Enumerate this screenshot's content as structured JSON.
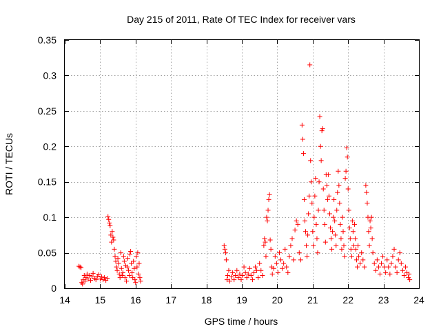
{
  "chart_data": {
    "type": "scatter",
    "title": "Day 215 of 2011, Rate Of TEC Index for receiver vars",
    "xlabel": "GPS time / hours",
    "ylabel": "ROTI / TECUs",
    "xlim": [
      14,
      24
    ],
    "ylim": [
      0,
      0.35
    ],
    "x_ticks": [
      "14",
      "15",
      "16",
      "17",
      "18",
      "19",
      "20",
      "21",
      "22",
      "23",
      "24"
    ],
    "y_ticks": [
      "0",
      "0.05",
      "0.1",
      "0.15",
      "0.2",
      "0.25",
      "0.3",
      "0.35"
    ],
    "grid": true,
    "marker": "plus",
    "series": [
      {
        "color": "#ff0000",
        "points": [
          [
            14.4,
            0.031
          ],
          [
            14.43,
            0.03
          ],
          [
            14.46,
            0.029
          ],
          [
            14.48,
            0.008
          ],
          [
            14.5,
            0.006
          ],
          [
            14.52,
            0.012
          ],
          [
            14.55,
            0.018
          ],
          [
            14.57,
            0.01
          ],
          [
            14.6,
            0.015
          ],
          [
            14.63,
            0.02
          ],
          [
            14.66,
            0.013
          ],
          [
            14.7,
            0.018
          ],
          [
            14.73,
            0.011
          ],
          [
            14.77,
            0.016
          ],
          [
            14.8,
            0.021
          ],
          [
            14.84,
            0.014
          ],
          [
            14.88,
            0.012
          ],
          [
            14.92,
            0.017
          ],
          [
            14.96,
            0.019
          ],
          [
            15.0,
            0.013
          ],
          [
            15.04,
            0.016
          ],
          [
            15.08,
            0.012
          ],
          [
            15.12,
            0.015
          ],
          [
            15.16,
            0.011
          ],
          [
            15.2,
            0.014
          ],
          [
            15.22,
            0.101
          ],
          [
            15.24,
            0.097
          ],
          [
            15.26,
            0.092
          ],
          [
            15.28,
            0.088
          ],
          [
            15.3,
            0.075
          ],
          [
            15.32,
            0.065
          ],
          [
            15.34,
            0.08
          ],
          [
            15.36,
            0.072
          ],
          [
            15.38,
            0.068
          ],
          [
            15.4,
            0.055
          ],
          [
            15.42,
            0.045
          ],
          [
            15.44,
            0.038
          ],
          [
            15.46,
            0.03
          ],
          [
            15.48,
            0.025
          ],
          [
            15.5,
            0.042
          ],
          [
            15.52,
            0.035
          ],
          [
            15.54,
            0.02
          ],
          [
            15.56,
            0.015
          ],
          [
            15.58,
            0.05
          ],
          [
            15.6,
            0.028
          ],
          [
            15.62,
            0.018
          ],
          [
            15.64,
            0.022
          ],
          [
            15.66,
            0.045
          ],
          [
            15.68,
            0.038
          ],
          [
            15.7,
            0.015
          ],
          [
            15.72,
            0.032
          ],
          [
            15.74,
            0.01
          ],
          [
            15.76,
            0.03
          ],
          [
            15.78,
            0.042
          ],
          [
            15.8,
            0.025
          ],
          [
            15.82,
            0.018
          ],
          [
            15.84,
            0.048
          ],
          [
            15.86,
            0.052
          ],
          [
            15.88,
            0.035
          ],
          [
            15.9,
            0.022
          ],
          [
            15.92,
            0.015
          ],
          [
            15.94,
            0.038
          ],
          [
            15.96,
            0.028
          ],
          [
            15.98,
            0.012
          ],
          [
            16.0,
            0.008
          ],
          [
            16.02,
            0.045
          ],
          [
            16.04,
            0.03
          ],
          [
            16.06,
            0.05
          ],
          [
            16.08,
            0.02
          ],
          [
            16.1,
            0.035
          ],
          [
            16.12,
            0.015
          ],
          [
            16.14,
            0.01
          ],
          [
            18.5,
            0.06
          ],
          [
            18.52,
            0.055
          ],
          [
            18.54,
            0.05
          ],
          [
            18.56,
            0.04
          ],
          [
            18.58,
            0.012
          ],
          [
            18.6,
            0.018
          ],
          [
            18.63,
            0.025
          ],
          [
            18.66,
            0.01
          ],
          [
            18.7,
            0.016
          ],
          [
            18.74,
            0.022
          ],
          [
            18.78,
            0.012
          ],
          [
            18.82,
            0.018
          ],
          [
            18.86,
            0.025
          ],
          [
            18.9,
            0.015
          ],
          [
            18.94,
            0.02
          ],
          [
            18.98,
            0.012
          ],
          [
            19.02,
            0.018
          ],
          [
            19.06,
            0.03
          ],
          [
            19.1,
            0.022
          ],
          [
            19.14,
            0.015
          ],
          [
            19.18,
            0.02
          ],
          [
            19.22,
            0.028
          ],
          [
            19.26,
            0.018
          ],
          [
            19.3,
            0.012
          ],
          [
            19.34,
            0.022
          ],
          [
            19.38,
            0.03
          ],
          [
            19.42,
            0.025
          ],
          [
            19.46,
            0.015
          ],
          [
            19.5,
            0.035
          ],
          [
            19.54,
            0.025
          ],
          [
            19.58,
            0.018
          ],
          [
            19.62,
            0.06
          ],
          [
            19.64,
            0.07
          ],
          [
            19.66,
            0.065
          ],
          [
            19.68,
            0.045
          ],
          [
            19.7,
            0.1
          ],
          [
            19.72,
            0.095
          ],
          [
            19.74,
            0.11
          ],
          [
            19.76,
            0.125
          ],
          [
            19.78,
            0.132
          ],
          [
            19.8,
            0.068
          ],
          [
            19.82,
            0.055
          ],
          [
            19.84,
            0.03
          ],
          [
            19.86,
            0.02
          ],
          [
            19.9,
            0.028
          ],
          [
            19.94,
            0.045
          ],
          [
            19.98,
            0.035
          ],
          [
            20.02,
            0.022
          ],
          [
            20.06,
            0.05
          ],
          [
            20.1,
            0.04
          ],
          [
            20.14,
            0.028
          ],
          [
            20.18,
            0.035
          ],
          [
            20.22,
            0.055
          ],
          [
            20.26,
            0.03
          ],
          [
            20.3,
            0.022
          ],
          [
            20.34,
            0.045
          ],
          [
            20.38,
            0.06
          ],
          [
            20.42,
            0.07
          ],
          [
            20.46,
            0.04
          ],
          [
            20.5,
            0.082
          ],
          [
            20.54,
            0.095
          ],
          [
            20.58,
            0.09
          ],
          [
            20.62,
            0.05
          ],
          [
            20.66,
            0.04
          ],
          [
            20.7,
            0.23
          ],
          [
            20.72,
            0.21
          ],
          [
            20.74,
            0.19
          ],
          [
            20.76,
            0.125
          ],
          [
            20.78,
            0.095
          ],
          [
            20.8,
            0.08
          ],
          [
            20.82,
            0.06
          ],
          [
            20.84,
            0.045
          ],
          [
            20.86,
            0.075
          ],
          [
            20.88,
            0.105
          ],
          [
            20.9,
            0.13
          ],
          [
            20.92,
            0.315
          ],
          [
            20.94,
            0.18
          ],
          [
            20.96,
            0.15
          ],
          [
            20.98,
            0.12
          ],
          [
            21.0,
            0.08
          ],
          [
            21.02,
            0.06
          ],
          [
            21.04,
            0.1
          ],
          [
            21.06,
            0.13
          ],
          [
            21.08,
            0.155
          ],
          [
            21.1,
            0.09
          ],
          [
            21.12,
            0.07
          ],
          [
            21.14,
            0.05
          ],
          [
            21.16,
            0.11
          ],
          [
            21.18,
            0.15
          ],
          [
            21.2,
            0.242
          ],
          [
            21.22,
            0.2
          ],
          [
            21.24,
            0.18
          ],
          [
            21.26,
            0.222
          ],
          [
            21.28,
            0.225
          ],
          [
            21.3,
            0.14
          ],
          [
            21.32,
            0.11
          ],
          [
            21.34,
            0.09
          ],
          [
            21.36,
            0.065
          ],
          [
            21.38,
            0.16
          ],
          [
            21.4,
            0.145
          ],
          [
            21.42,
            0.125
          ],
          [
            21.44,
            0.16
          ],
          [
            21.46,
            0.13
          ],
          [
            21.48,
            0.105
          ],
          [
            21.5,
            0.085
          ],
          [
            21.52,
            0.07
          ],
          [
            21.54,
            0.055
          ],
          [
            21.56,
            0.08
          ],
          [
            21.58,
            0.1
          ],
          [
            21.6,
            0.125
          ],
          [
            21.62,
            0.095
          ],
          [
            21.64,
            0.075
          ],
          [
            21.66,
            0.06
          ],
          [
            21.68,
            0.11
          ],
          [
            21.7,
            0.135
          ],
          [
            21.72,
            0.165
          ],
          [
            21.74,
            0.145
          ],
          [
            21.76,
            0.12
          ],
          [
            21.78,
            0.09
          ],
          [
            21.8,
            0.07
          ],
          [
            21.82,
            0.055
          ],
          [
            21.84,
            0.1
          ],
          [
            21.86,
            0.08
          ],
          [
            21.88,
            0.06
          ],
          [
            21.9,
            0.045
          ],
          [
            21.92,
            0.155
          ],
          [
            21.94,
            0.165
          ],
          [
            21.96,
            0.198
          ],
          [
            21.98,
            0.185
          ],
          [
            22.0,
            0.14
          ],
          [
            22.02,
            0.11
          ],
          [
            22.04,
            0.085
          ],
          [
            22.06,
            0.07
          ],
          [
            22.08,
            0.055
          ],
          [
            22.1,
            0.045
          ],
          [
            22.12,
            0.095
          ],
          [
            22.14,
            0.08
          ],
          [
            22.16,
            0.06
          ],
          [
            22.18,
            0.09
          ],
          [
            22.2,
            0.07
          ],
          [
            22.22,
            0.055
          ],
          [
            22.24,
            0.04
          ],
          [
            22.26,
            0.03
          ],
          [
            22.28,
            0.06
          ],
          [
            22.3,
            0.045
          ],
          [
            22.34,
            0.035
          ],
          [
            22.38,
            0.05
          ],
          [
            22.42,
            0.04
          ],
          [
            22.46,
            0.03
          ],
          [
            22.5,
            0.145
          ],
          [
            22.52,
            0.135
          ],
          [
            22.54,
            0.12
          ],
          [
            22.56,
            0.1
          ],
          [
            22.58,
            0.08
          ],
          [
            22.6,
            0.06
          ],
          [
            22.62,
            0.095
          ],
          [
            22.64,
            0.085
          ],
          [
            22.66,
            0.1
          ],
          [
            22.68,
            0.07
          ],
          [
            22.7,
            0.05
          ],
          [
            22.74,
            0.035
          ],
          [
            22.78,
            0.025
          ],
          [
            22.82,
            0.04
          ],
          [
            22.86,
            0.03
          ],
          [
            22.9,
            0.02
          ],
          [
            22.94,
            0.035
          ],
          [
            22.98,
            0.045
          ],
          [
            23.02,
            0.03
          ],
          [
            23.06,
            0.022
          ],
          [
            23.1,
            0.04
          ],
          [
            23.14,
            0.03
          ],
          [
            23.18,
            0.02
          ],
          [
            23.22,
            0.035
          ],
          [
            23.26,
            0.045
          ],
          [
            23.3,
            0.055
          ],
          [
            23.34,
            0.03
          ],
          [
            23.38,
            0.022
          ],
          [
            23.42,
            0.04
          ],
          [
            23.46,
            0.05
          ],
          [
            23.5,
            0.035
          ],
          [
            23.54,
            0.025
          ],
          [
            23.58,
            0.018
          ],
          [
            23.62,
            0.03
          ],
          [
            23.66,
            0.022
          ],
          [
            23.7,
            0.015
          ],
          [
            23.72,
            0.02
          ],
          [
            23.74,
            0.012
          ]
        ]
      }
    ]
  }
}
